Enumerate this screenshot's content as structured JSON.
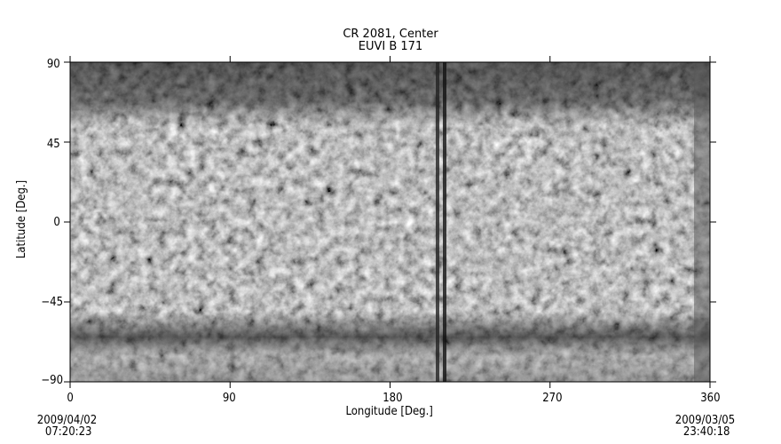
{
  "chart_data": {
    "type": "heatmap",
    "title": "CR 2081, Center",
    "subtitle": "EUVI B 171",
    "xlabel": "Longitude [Deg.]",
    "ylabel": "Latitude [Deg.]",
    "xlim": [
      0,
      360
    ],
    "ylim": [
      -90,
      90
    ],
    "xticks": [
      "0",
      "90",
      "180",
      "270",
      "360"
    ],
    "yticks": [
      "90",
      "45",
      "0",
      "-45",
      "-90"
    ],
    "colormap": "grayscale",
    "start_time": {
      "date": "2009/04/02",
      "time": "07:20:23"
    },
    "end_time": {
      "date": "2009/03/05",
      "time": "23:40:18"
    }
  }
}
